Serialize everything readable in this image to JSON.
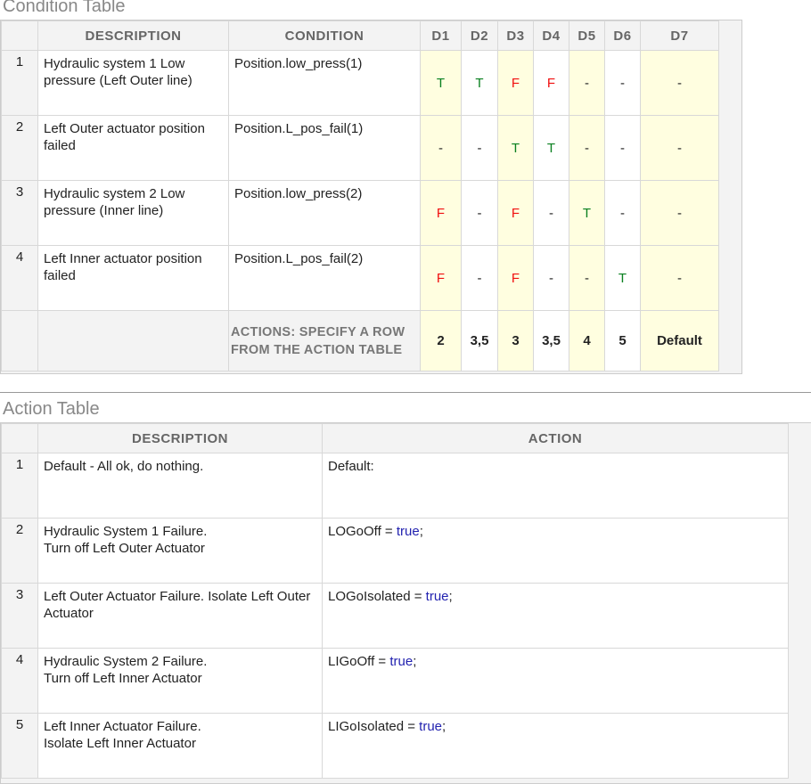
{
  "condition_table": {
    "title": "Condition Table",
    "headers": {
      "description": "DESCRIPTION",
      "condition": "CONDITION",
      "decisions": [
        "D1",
        "D2",
        "D3",
        "D4",
        "D5",
        "D6",
        "D7"
      ]
    },
    "rows": [
      {
        "num": "1",
        "description": "Hydraulic system 1 Low pressure (Left Outer line)",
        "condition": "Position.low_press(1)",
        "values": [
          "T",
          "T",
          "F",
          "F",
          "-",
          "-",
          "-"
        ]
      },
      {
        "num": "2",
        "description": "Left Outer actuator position failed",
        "condition": "Position.L_pos_fail(1)",
        "values": [
          "-",
          "-",
          "T",
          "T",
          "-",
          "-",
          "-"
        ]
      },
      {
        "num": "3",
        "description": "Hydraulic system 2 Low pressure (Inner line)",
        "condition": "Position.low_press(2)",
        "values": [
          "F",
          "-",
          "F",
          "-",
          "T",
          "-",
          "-"
        ]
      },
      {
        "num": "4",
        "description": "Left Inner actuator position failed",
        "condition": "Position.L_pos_fail(2)",
        "values": [
          "F",
          "-",
          "F",
          "-",
          "-",
          "T",
          "-"
        ]
      }
    ],
    "actions_label": "ACTIONS: SPECIFY A ROW FROM THE ACTION TABLE",
    "actions": [
      "2",
      "3,5",
      "3",
      "3,5",
      "4",
      "5",
      "Default"
    ]
  },
  "action_table": {
    "title": "Action Table",
    "headers": {
      "description": "DESCRIPTION",
      "action": "ACTION"
    },
    "rows": [
      {
        "num": "1",
        "description": "Default - All ok, do nothing.",
        "action_var": "Default:",
        "action_value": "",
        "action_end": ""
      },
      {
        "num": "2",
        "description": "Hydraulic System 1 Failure.\nTurn off Left Outer Actuator",
        "action_var": "LOGoOff = ",
        "action_value": "true",
        "action_end": ";"
      },
      {
        "num": "3",
        "description": "Left Outer Actuator Failure. Isolate Left Outer Actuator",
        "action_var": "LOGoIsolated = ",
        "action_value": "true",
        "action_end": ";"
      },
      {
        "num": "4",
        "description": "Hydraulic System 2 Failure.\nTurn off Left Inner Actuator",
        "action_var": "LIGoOff = ",
        "action_value": "true",
        "action_end": ";"
      },
      {
        "num": "5",
        "description": "Left Inner Actuator Failure.\nIsolate Left Inner Actuator",
        "action_var": "LIGoIsolated = ",
        "action_value": "true",
        "action_end": ";"
      }
    ]
  },
  "colors": {
    "true": "#0a8020",
    "false": "#f01010",
    "keyword": "#2323b0",
    "highlight": "#fffee0"
  }
}
